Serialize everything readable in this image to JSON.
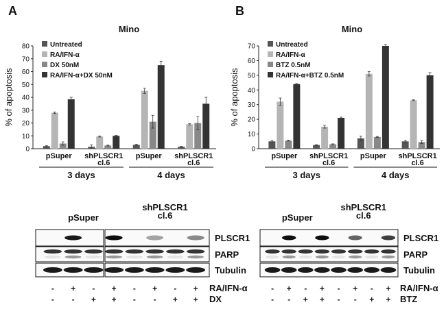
{
  "panels": [
    {
      "letter": "A",
      "blot": {
        "group_labels": [
          "pSuper",
          "shPLSCR1\ncl.6"
        ],
        "bands": [
          "PLSCR1",
          "PARP",
          "Tubulin"
        ],
        "treatment_rows": [
          {
            "label": "RA/IFN-α",
            "signs": [
              "-",
              "+",
              "-",
              "+",
              "-",
              "+",
              "-",
              "+"
            ]
          },
          {
            "label": "DX",
            "signs": [
              "-",
              "-",
              "+",
              "+",
              "-",
              "-",
              "+",
              "+"
            ]
          }
        ]
      }
    },
    {
      "letter": "B",
      "blot": {
        "group_labels": [
          "pSuper",
          "shPLSCR1\ncl.6"
        ],
        "bands": [
          "PLSCR1",
          "PARP",
          "Tubulin"
        ],
        "treatment_rows": [
          {
            "label": "RA/IFN-α",
            "signs": [
              "-",
              "+",
              "-",
              "+",
              "-",
              "+",
              "-",
              "+"
            ]
          },
          {
            "label": "BTZ",
            "signs": [
              "-",
              "-",
              "+",
              "+",
              "-",
              "-",
              "+",
              "+"
            ]
          }
        ]
      }
    }
  ],
  "chart_data": [
    {
      "type": "bar",
      "title": "Mino",
      "ylabel": "% of apoptosis",
      "ylim": [
        0,
        80
      ],
      "yticks": [
        0,
        10,
        20,
        30,
        40,
        50,
        60,
        70,
        80
      ],
      "categories": [
        "pSuper",
        "shPLSCR1\ncl.6",
        "pSuper",
        "shPLSCR1\ncl.6"
      ],
      "day_groups": [
        {
          "label": "3 days",
          "span": [
            0,
            1
          ]
        },
        {
          "label": "4 days",
          "span": [
            2,
            3
          ]
        }
      ],
      "legend_position": "top-left",
      "series": [
        {
          "name": "Untreated",
          "color": "#555555",
          "values": [
            2,
            1.5,
            3,
            1.5
          ],
          "errors": [
            0.3,
            1.5,
            0.4,
            0.3
          ]
        },
        {
          "name": "RA/IFN-α",
          "color": "#b5b5b5",
          "values": [
            28,
            9.5,
            45,
            19
          ],
          "errors": [
            0.6,
            0.4,
            2.0,
            0.5
          ]
        },
        {
          "name": "DX 50nM",
          "color": "#888888",
          "values": [
            4,
            2.5,
            21,
            20
          ],
          "errors": [
            1.3,
            0.3,
            5.0,
            5.0
          ]
        },
        {
          "name": "RA/IFN-α+DX 50nM",
          "color": "#333333",
          "values": [
            38.5,
            10,
            65,
            35
          ],
          "errors": [
            1.5,
            0.4,
            3.0,
            5.0
          ]
        }
      ]
    },
    {
      "type": "bar",
      "title": "Mino",
      "ylabel": "% of apoptosis",
      "ylim": [
        0,
        70
      ],
      "yticks": [
        0,
        10,
        20,
        30,
        40,
        50,
        60,
        70
      ],
      "categories": [
        "pSuper",
        "shPLSCR1\ncl.6",
        "pSuper",
        "shPLSCR1\ncl.6"
      ],
      "day_groups": [
        {
          "label": "3 days",
          "span": [
            0,
            1
          ]
        },
        {
          "label": "4 days",
          "span": [
            2,
            3
          ]
        }
      ],
      "legend_position": "top-left",
      "series": [
        {
          "name": "Untreated",
          "color": "#555555",
          "values": [
            5,
            2.5,
            7,
            5
          ],
          "errors": [
            0.6,
            0.2,
            1.5,
            0.8
          ]
        },
        {
          "name": "RA/IFN-α",
          "color": "#b5b5b5",
          "values": [
            32,
            15,
            51,
            33
          ],
          "errors": [
            2.5,
            1.0,
            1.5,
            0.3
          ]
        },
        {
          "name": "BTZ 0.5nM",
          "color": "#888888",
          "values": [
            5.5,
            3,
            8,
            4.5
          ],
          "errors": [
            0.3,
            0.3,
            0.3,
            1.0
          ]
        },
        {
          "name": "RA/IFN-α+BTZ 0.5nM",
          "color": "#333333",
          "values": [
            44,
            21,
            70,
            50
          ],
          "errors": [
            0.3,
            0.5,
            1.0,
            1.8
          ]
        }
      ]
    }
  ]
}
